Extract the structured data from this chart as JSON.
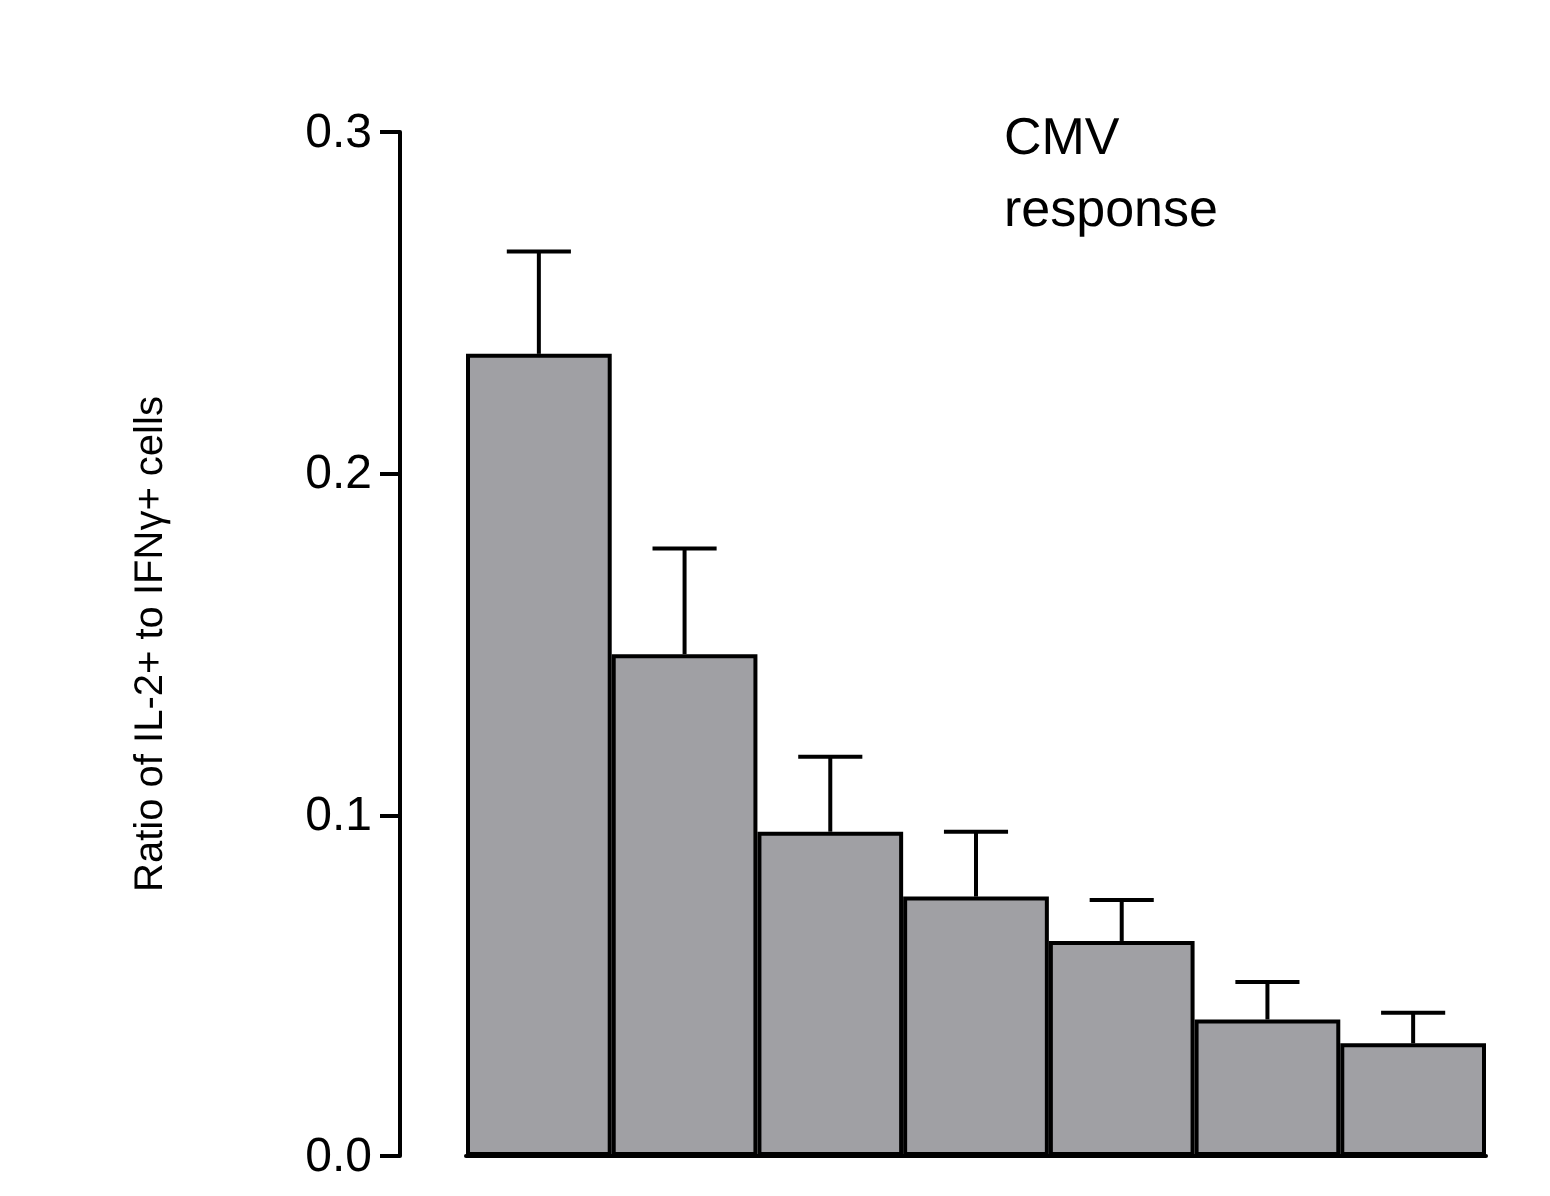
{
  "chart_data": {
    "type": "bar",
    "title": "CMV\nresponse",
    "ylabel": "Ratio of IL-2+ to IFNγ+ cells",
    "categories": [
      null,
      null,
      null,
      null,
      null,
      null,
      null
    ],
    "values": [
      0.235,
      0.147,
      0.095,
      0.076,
      0.063,
      0.04,
      0.033
    ],
    "errors": [
      [
        0.235,
        0.265
      ],
      [
        0.147,
        0.178
      ],
      [
        0.095,
        0.117
      ],
      [
        0.076,
        0.095
      ],
      [
        0.063,
        0.075
      ],
      [
        0.04,
        0.051
      ],
      [
        0.033,
        0.042
      ]
    ],
    "color": "#a0a0a4",
    "ylim": [
      0,
      0.3
    ],
    "yticks": [
      {
        "value": 0,
        "label": "0.0"
      },
      0.1,
      0.2,
      0.3
    ],
    "grid": false
  }
}
